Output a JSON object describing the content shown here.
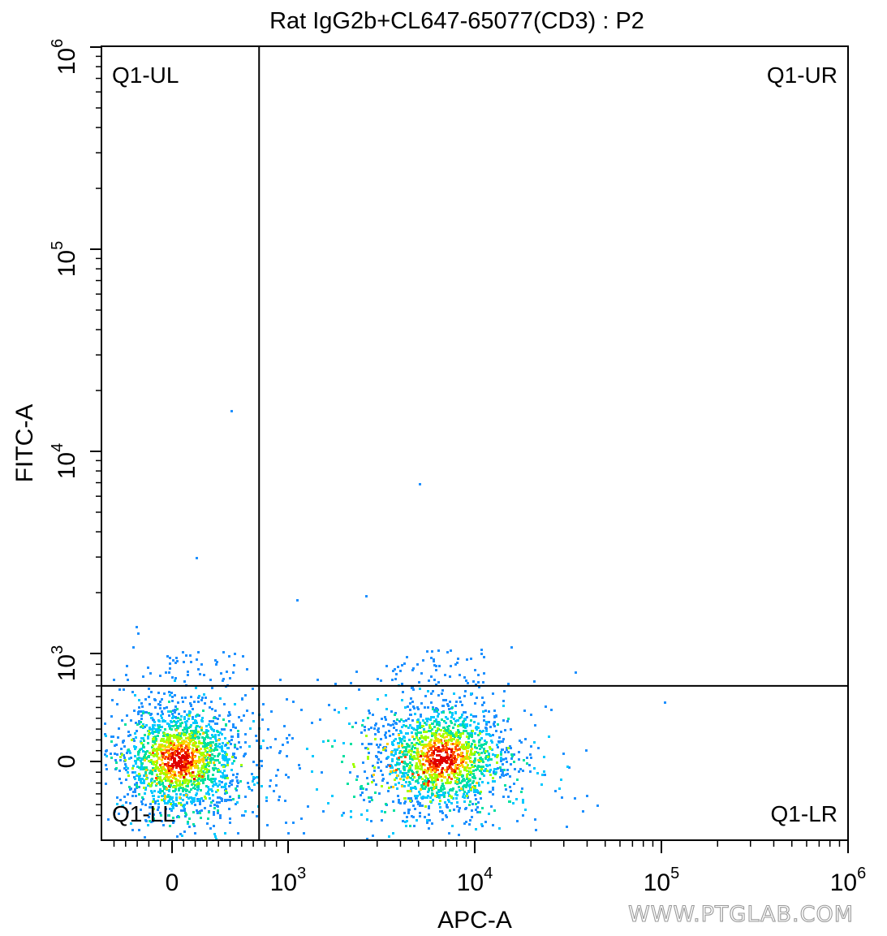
{
  "chart_data": {
    "type": "scatter",
    "title": "Rat IgG2b+CL647-65077(CD3) : P2",
    "xlabel": "APC-A",
    "ylabel": "FITC-A",
    "x_scale": "biexponential",
    "y_scale": "biexponential",
    "x_ticks": [
      {
        "base": "0",
        "exp": ""
      },
      {
        "base": "10",
        "exp": "3"
      },
      {
        "base": "10",
        "exp": "4"
      },
      {
        "base": "10",
        "exp": "5"
      },
      {
        "base": "10",
        "exp": "6"
      }
    ],
    "y_ticks": [
      {
        "base": "0",
        "exp": ""
      },
      {
        "base": "10",
        "exp": "3"
      },
      {
        "base": "10",
        "exp": "4"
      },
      {
        "base": "10",
        "exp": "5"
      },
      {
        "base": "10",
        "exp": "6"
      }
    ],
    "quadrant_gate": {
      "x": 750,
      "y": 700
    },
    "quadrants": {
      "ul": "Q1-UL",
      "ur": "Q1-UR",
      "ll": "Q1-LL",
      "lr": "Q1-LR"
    },
    "populations": [
      {
        "name": "",
        "x_center": 0,
        "y_center": 0,
        "density": "high"
      },
      {
        "name": "",
        "x_center": 7000,
        "y_center": 0,
        "density": "high"
      }
    ],
    "outliers": [
      {
        "x": 500,
        "y": 16000
      },
      {
        "x": 5000,
        "y": 7000
      },
      {
        "x": 200,
        "y": 3000
      },
      {
        "x": 1100,
        "y": 1850
      },
      {
        "x": 2600,
        "y": 1950
      }
    ],
    "colormap": [
      "#1e90ff",
      "#00c8ff",
      "#00e0a0",
      "#a0ff00",
      "#ffd000",
      "#ff5000",
      "#e00000"
    ],
    "grid": false,
    "legend": "none"
  },
  "watermark": "WWW.PTGLAB.COM"
}
